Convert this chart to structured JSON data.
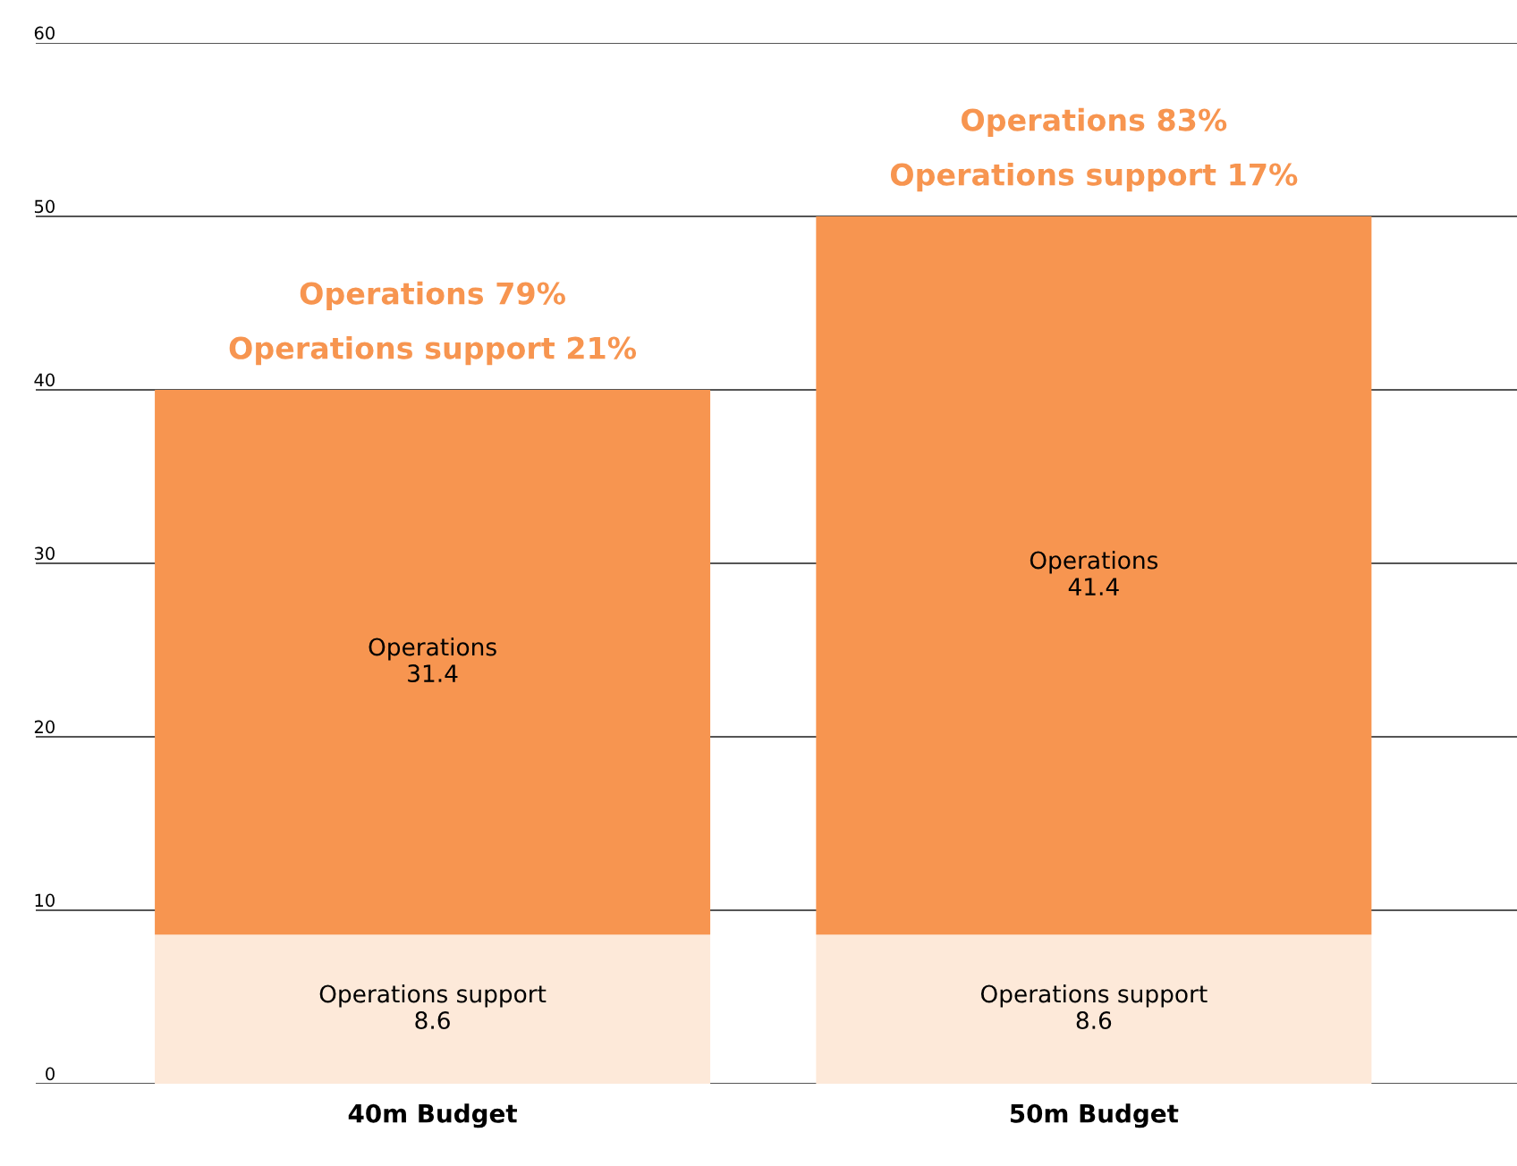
{
  "chart_data": {
    "type": "bar",
    "stacked": true,
    "categories": [
      "40m Budget",
      "50m Budget"
    ],
    "series": [
      {
        "name": "Operations support",
        "color": "#fde9d9",
        "values": [
          8.6,
          8.6
        ]
      },
      {
        "name": "Operations",
        "color": "#f79550",
        "values": [
          31.4,
          41.4
        ]
      }
    ],
    "ylim": [
      0,
      60
    ],
    "yticks": [
      0,
      10,
      20,
      30,
      40,
      50,
      60
    ],
    "grid": "y",
    "legend": false,
    "data_labels": true,
    "annotations": [
      "Operations 79%",
      "Operations support 21%",
      "Operations 83%",
      "Operations support 17%"
    ]
  }
}
